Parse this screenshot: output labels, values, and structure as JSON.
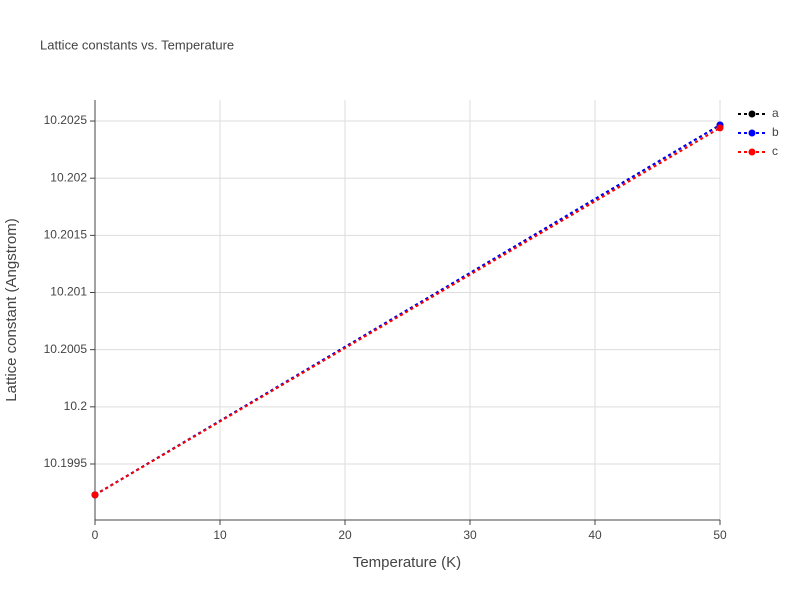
{
  "chart_data": {
    "type": "line",
    "title": "Lattice constants vs. Temperature",
    "x_label": "Temperature (K)",
    "y_label": "Lattice constant (Angstrom)",
    "x": [
      0,
      50
    ],
    "series": [
      {
        "name": "a",
        "color": "#000000",
        "values": [
          10.19923,
          10.202465
        ]
      },
      {
        "name": "b",
        "color": "#0000ff",
        "values": [
          10.19923,
          10.202465
        ]
      },
      {
        "name": "c",
        "color": "#ff0000",
        "values": [
          10.19923,
          10.20244
        ]
      }
    ],
    "xlim": [
      0,
      50
    ],
    "xticks": [
      0,
      10,
      20,
      30,
      40,
      50
    ],
    "ylim": [
      10.19901,
      10.202684
    ],
    "yticks": [
      10.1995,
      10.2,
      10.2005,
      10.201,
      10.2015,
      10.202,
      10.2025
    ],
    "grid": true,
    "legend": "right"
  }
}
